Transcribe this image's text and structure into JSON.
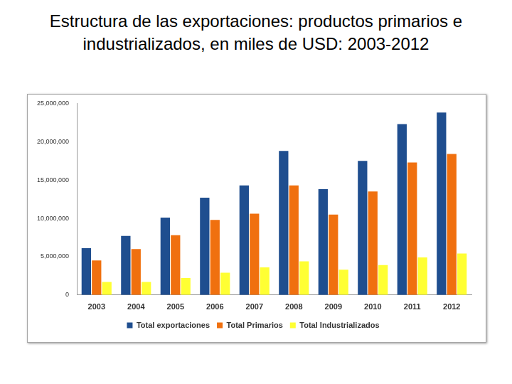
{
  "chart_data": {
    "type": "bar",
    "title": "Estructura de las exportaciones: productos primarios e industrializados, en miles de USD: 2003-2012",
    "categories": [
      "2003",
      "2004",
      "2005",
      "2006",
      "2007",
      "2008",
      "2009",
      "2010",
      "2011",
      "2012"
    ],
    "series": [
      {
        "name": "Total exportaciones",
        "color": "#1f4e8f",
        "values": [
          6100000,
          7700000,
          10100000,
          12700000,
          14300000,
          18800000,
          13800000,
          17500000,
          22300000,
          23800000
        ]
      },
      {
        "name": "Total Primarios",
        "color": "#f0700f",
        "values": [
          4500000,
          6000000,
          7800000,
          9800000,
          10600000,
          14300000,
          10500000,
          13500000,
          17300000,
          18400000
        ]
      },
      {
        "name": "Total Industrializados",
        "color": "#ffff33",
        "values": [
          1700000,
          1700000,
          2200000,
          2900000,
          3600000,
          4400000,
          3300000,
          3900000,
          4900000,
          5400000
        ]
      }
    ],
    "ylim": [
      0,
      25000000
    ],
    "yticks": [
      0,
      {
        "value": 5000000,
        "label": "5,000,000"
      },
      {
        "value": 10000000,
        "label": "10,000,000"
      },
      {
        "value": 15000000,
        "label": "15,000,000"
      },
      {
        "value": 20000000,
        "label": "20,000,000"
      },
      {
        "value": 25000000,
        "label": "25,000,000"
      }
    ],
    "grid": false,
    "legend": "bottom"
  }
}
